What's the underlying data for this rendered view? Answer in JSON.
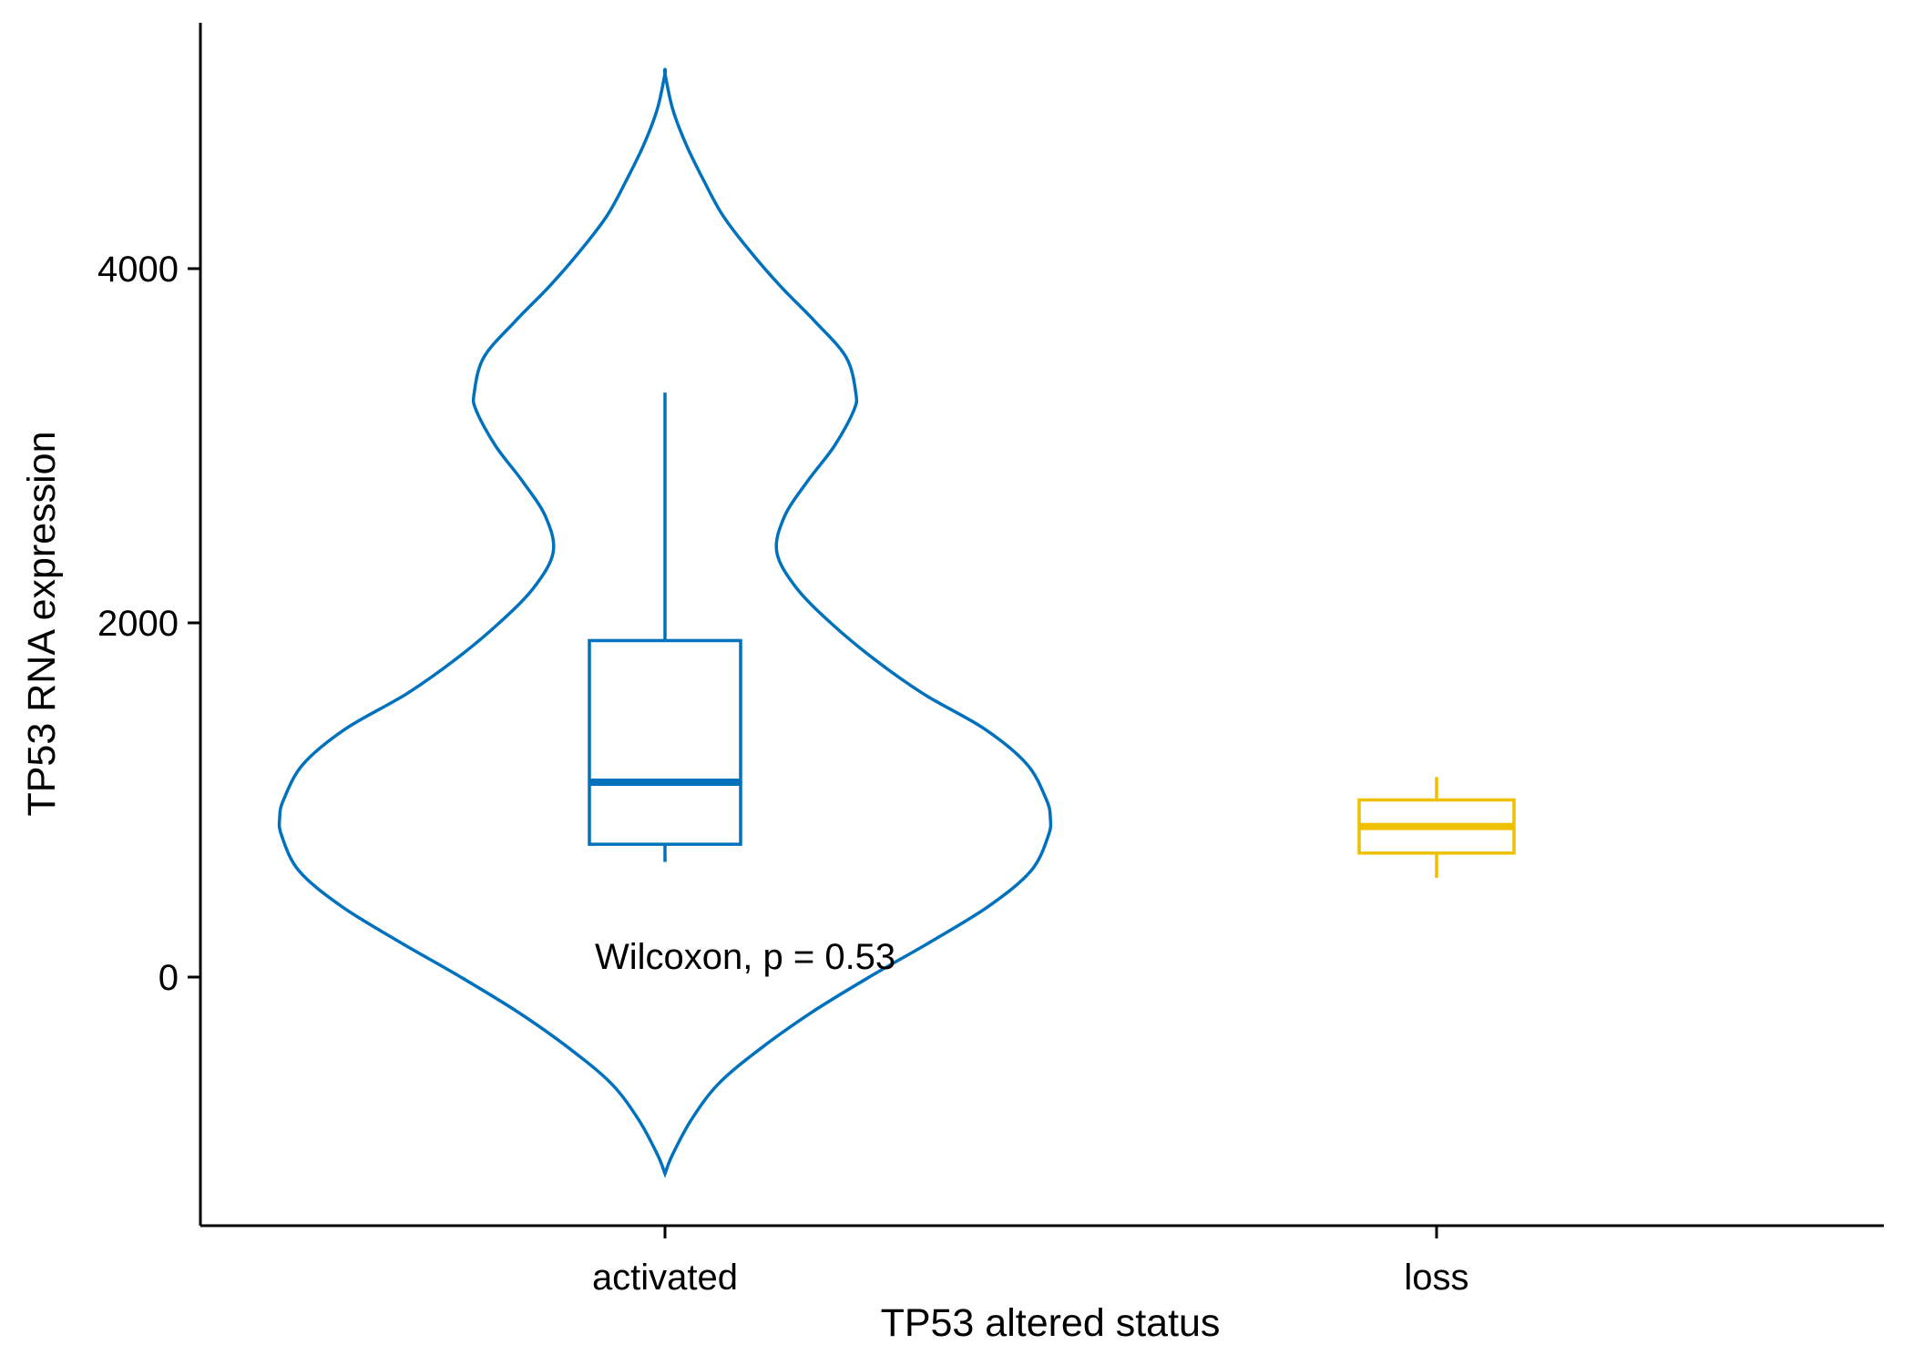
{
  "chart_data": {
    "type": "violin",
    "xlabel": "TP53 altered status",
    "ylabel": "TP53 RNA expression",
    "categories": [
      "activated",
      "loss"
    ],
    "y_ticks": [
      0,
      2000,
      4000
    ],
    "ylim": [
      -1400,
      5200
    ],
    "grid": false,
    "legend": "none",
    "annotation": "Wilcoxon, p = 0.53",
    "groups": [
      {
        "category": "activated",
        "color": "#0072BD",
        "violin": {
          "y_min": -1110,
          "y_max": 5100,
          "density_profile": [
            [
              -1110,
              0.0
            ],
            [
              -1000,
              0.02
            ],
            [
              -800,
              0.07
            ],
            [
              -600,
              0.14
            ],
            [
              -400,
              0.25
            ],
            [
              -200,
              0.38
            ],
            [
              0,
              0.53
            ],
            [
              200,
              0.69
            ],
            [
              400,
              0.84
            ],
            [
              600,
              0.95
            ],
            [
              800,
              0.995
            ],
            [
              900,
              1.0
            ],
            [
              1000,
              0.99
            ],
            [
              1200,
              0.94
            ],
            [
              1400,
              0.83
            ],
            [
              1600,
              0.67
            ],
            [
              1800,
              0.54
            ],
            [
              2000,
              0.43
            ],
            [
              2200,
              0.34
            ],
            [
              2400,
              0.29
            ],
            [
              2600,
              0.31
            ],
            [
              2800,
              0.37
            ],
            [
              3000,
              0.44
            ],
            [
              3200,
              0.49
            ],
            [
              3300,
              0.495
            ],
            [
              3500,
              0.47
            ],
            [
              3700,
              0.39
            ],
            [
              3900,
              0.3
            ],
            [
              4100,
              0.22
            ],
            [
              4300,
              0.15
            ],
            [
              4500,
              0.1
            ],
            [
              4700,
              0.055
            ],
            [
              4900,
              0.02
            ],
            [
              5100,
              0.0
            ]
          ]
        },
        "box": {
          "whisker_low": 650,
          "q1": 750,
          "median": 1100,
          "q3": 1900,
          "whisker_high": 3300
        }
      },
      {
        "category": "loss",
        "color": "#EFC000",
        "box": {
          "whisker_low": 560,
          "q1": 700,
          "median": 850,
          "q3": 1000,
          "whisker_high": 1130
        }
      }
    ]
  }
}
